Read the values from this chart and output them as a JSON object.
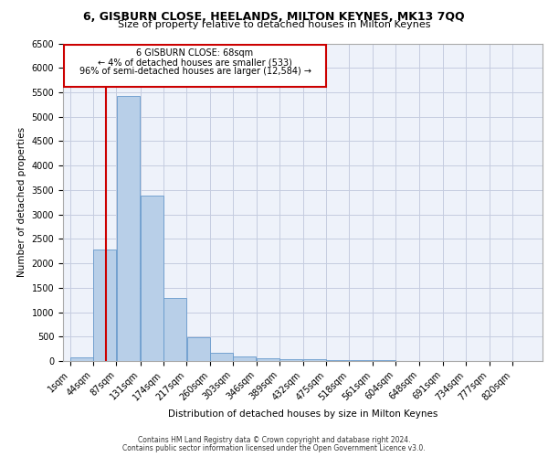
{
  "title": "6, GISBURN CLOSE, HEELANDS, MILTON KEYNES, MK13 7QQ",
  "subtitle": "Size of property relative to detached houses in Milton Keynes",
  "xlabel": "Distribution of detached houses by size in Milton Keynes",
  "ylabel": "Number of detached properties",
  "footer_line1": "Contains HM Land Registry data © Crown copyright and database right 2024.",
  "footer_line2": "Contains public sector information licensed under the Open Government Licence v3.0.",
  "annotation_title": "6 GISBURN CLOSE: 68sqm",
  "annotation_line1": "← 4% of detached houses are smaller (533)",
  "annotation_line2": "96% of semi-detached houses are larger (12,584) →",
  "property_size": 68,
  "bin_starts": [
    1,
    44,
    87,
    131,
    174,
    217,
    260,
    303,
    346,
    389,
    432,
    475,
    518,
    561,
    604,
    648,
    691,
    734,
    777,
    820
  ],
  "bin_width": 43,
  "bar_values": [
    75,
    2280,
    5420,
    3380,
    1300,
    490,
    165,
    90,
    65,
    45,
    35,
    25,
    15,
    10,
    8,
    5,
    4,
    3,
    2,
    1
  ],
  "bar_color": "#b8cfe8",
  "bar_edge_color": "#6699cc",
  "vline_color": "#cc0000",
  "annotation_box_color": "#cc0000",
  "background_color": "#eef2fa",
  "grid_color": "#c5cce0",
  "ylim_max": 6500,
  "ytick_step": 500,
  "title_fontsize": 9,
  "subtitle_fontsize": 8,
  "axis_label_fontsize": 7.5,
  "tick_fontsize": 7,
  "annotation_fontsize": 7,
  "footer_fontsize": 5.5
}
